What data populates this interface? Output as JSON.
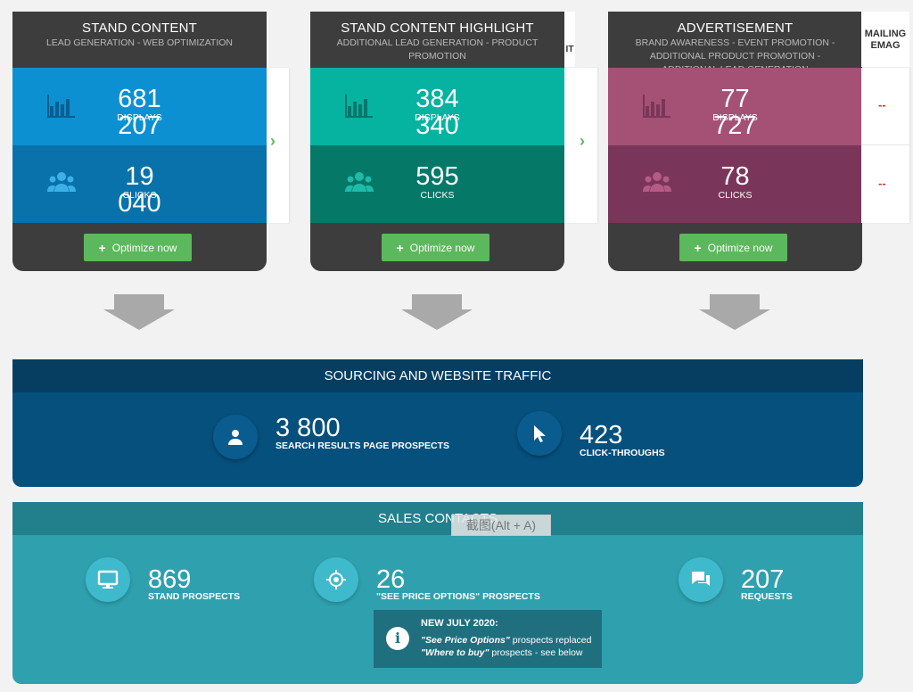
{
  "cards": [
    {
      "title": "STAND CONTENT",
      "subtitle": "LEAD GENERATION - WEB OPTIMIZATION",
      "displays_value": "681 207",
      "displays_label": "DISPLAYS",
      "clicks_value": "19 040",
      "clicks_label": "CLICKS",
      "button_label": "Optimize now"
    },
    {
      "title": "STAND CONTENT HIGHLIGHT",
      "subtitle": "ADDITIONAL LEAD GENERATION - PRODUCT PROMOTION",
      "displays_value": "384 340",
      "displays_label": "DISPLAYS",
      "clicks_value": "595",
      "clicks_label": "CLICKS",
      "button_label": "Optimize now"
    },
    {
      "title": "ADVERTISEMENT",
      "subtitle": "BRAND AWARENESS - EVENT PROMOTION - ADDITIONAL PRODUCT PROMOTION - ADDITIONAL LEAD GENERATION",
      "displays_value": "77 727",
      "displays_label": "DISPLAYS",
      "clicks_value": "78",
      "clicks_label": "CLICKS",
      "button_label": "Optimize now"
    }
  ],
  "hidden_column_fragment": "IT",
  "mailing": {
    "title_line1": "MAILING",
    "title_line2": "EMAG",
    "displays_value": "--",
    "clicks_value": "--"
  },
  "sourcing": {
    "title": "SOURCING AND WEBSITE TRAFFIC",
    "stats": [
      {
        "value": "3 800",
        "label": "SEARCH RESULTS PAGE PROSPECTS",
        "icon": "person-icon"
      },
      {
        "value": "423",
        "label": "CLICK-THROUGHS",
        "icon": "cursor-icon"
      }
    ]
  },
  "sales": {
    "title": "SALES CONTACTS",
    "stats": [
      {
        "value": "869",
        "label": "STAND PROSPECTS",
        "icon": "monitor-icon"
      },
      {
        "value": "26",
        "label": "\"SEE PRICE OPTIONS\" PROSPECTS",
        "icon": "target-icon"
      },
      {
        "value": "207",
        "label": "REQUESTS",
        "icon": "chat-icon"
      }
    ],
    "notice": {
      "title": "NEW JULY 2020:",
      "line1_em": "\"See Price Options\"",
      "line1_rest": " prospects replaced",
      "line2_em": "\"Where to buy\"",
      "line2_rest": " prospects - see below"
    }
  },
  "tooltip": "截图(Alt + A)",
  "colors": {
    "card1_top": "#0c90d2",
    "card2_top": "#06b2a0",
    "card3_top": "#a45175",
    "optimize_button": "#5cb85c",
    "sourcing_bg": "#06507d",
    "sales_bg": "#2fa0ae"
  }
}
